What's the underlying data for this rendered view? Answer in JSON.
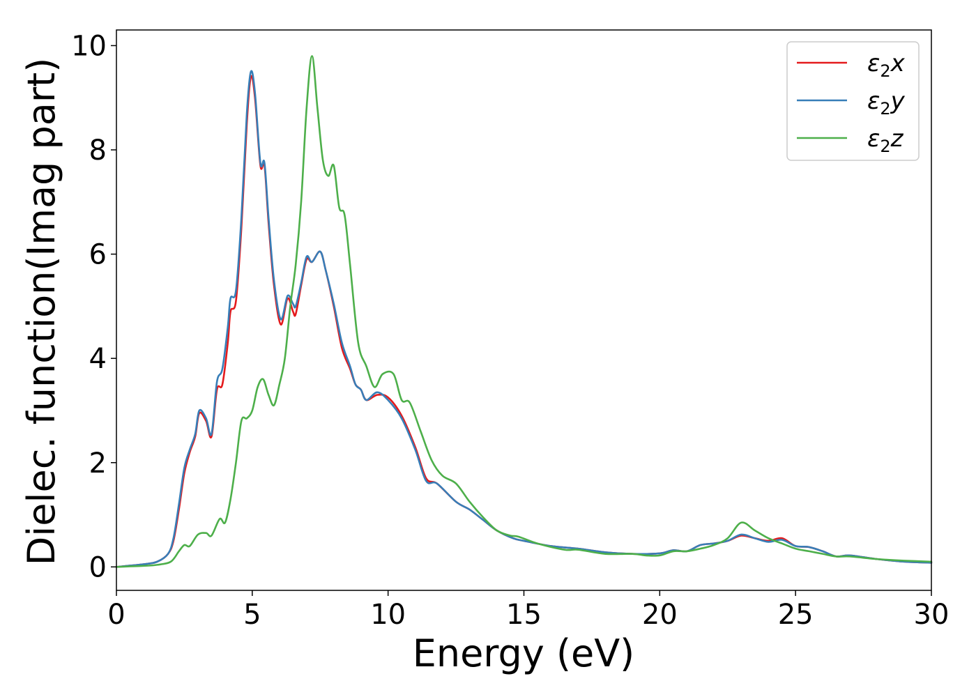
{
  "chart_data": {
    "type": "line",
    "title": "",
    "xlabel": "Energy (eV)",
    "ylabel": "Dielec. function(Imag part)",
    "xlim": [
      0,
      30
    ],
    "ylim": [
      -0.45,
      10.3
    ],
    "xticks": [
      "0",
      "5",
      "10",
      "15",
      "20",
      "25",
      "30"
    ],
    "yticks": [
      "0",
      "2",
      "4",
      "6",
      "8",
      "10"
    ],
    "grid": false,
    "legend_position": "top-right",
    "series": [
      {
        "name": "x",
        "legend_base": "ε",
        "legend_sub": "2",
        "legend_suffix": "x",
        "color": "#e41a1c",
        "points": [
          [
            0,
            0
          ],
          [
            1,
            0.05
          ],
          [
            1.5,
            0.1
          ],
          [
            1.9,
            0.25
          ],
          [
            2.1,
            0.5
          ],
          [
            2.3,
            1.1
          ],
          [
            2.5,
            1.8
          ],
          [
            2.7,
            2.2
          ],
          [
            2.9,
            2.5
          ],
          [
            3.05,
            2.95
          ],
          [
            3.3,
            2.8
          ],
          [
            3.5,
            2.5
          ],
          [
            3.7,
            3.4
          ],
          [
            3.9,
            3.5
          ],
          [
            4.1,
            4.3
          ],
          [
            4.2,
            4.9
          ],
          [
            4.4,
            5.1
          ],
          [
            4.6,
            6.5
          ],
          [
            4.8,
            8.5
          ],
          [
            4.95,
            9.4
          ],
          [
            5.1,
            9.0
          ],
          [
            5.3,
            7.7
          ],
          [
            5.45,
            7.7
          ],
          [
            5.6,
            6.6
          ],
          [
            5.8,
            5.4
          ],
          [
            6.05,
            4.65
          ],
          [
            6.3,
            5.15
          ],
          [
            6.5,
            4.9
          ],
          [
            6.6,
            4.85
          ],
          [
            6.8,
            5.4
          ],
          [
            7.0,
            5.9
          ],
          [
            7.2,
            5.85
          ],
          [
            7.5,
            6.05
          ],
          [
            7.7,
            5.7
          ],
          [
            8.0,
            5.0
          ],
          [
            8.3,
            4.2
          ],
          [
            8.6,
            3.8
          ],
          [
            8.8,
            3.5
          ],
          [
            9.0,
            3.4
          ],
          [
            9.2,
            3.2
          ],
          [
            9.6,
            3.3
          ],
          [
            10.0,
            3.25
          ],
          [
            10.5,
            2.9
          ],
          [
            11.0,
            2.3
          ],
          [
            11.4,
            1.7
          ],
          [
            11.8,
            1.6
          ],
          [
            12.5,
            1.25
          ],
          [
            13,
            1.1
          ],
          [
            13.5,
            0.9
          ],
          [
            14,
            0.7
          ],
          [
            14.6,
            0.55
          ],
          [
            15,
            0.5
          ],
          [
            16,
            0.4
          ],
          [
            17,
            0.35
          ],
          [
            18,
            0.28
          ],
          [
            19,
            0.25
          ],
          [
            20,
            0.26
          ],
          [
            20.5,
            0.32
          ],
          [
            21,
            0.3
          ],
          [
            21.5,
            0.42
          ],
          [
            22,
            0.45
          ],
          [
            22.5,
            0.5
          ],
          [
            23,
            0.6
          ],
          [
            23.5,
            0.55
          ],
          [
            24,
            0.5
          ],
          [
            24.5,
            0.55
          ],
          [
            25,
            0.4
          ],
          [
            25.5,
            0.38
          ],
          [
            26,
            0.3
          ],
          [
            26.5,
            0.2
          ],
          [
            27,
            0.22
          ],
          [
            28,
            0.15
          ],
          [
            29,
            0.1
          ],
          [
            30,
            0.08
          ]
        ]
      },
      {
        "name": "y",
        "legend_base": "ε",
        "legend_sub": "2",
        "legend_suffix": "y",
        "color": "#377eb8",
        "points": [
          [
            0,
            0
          ],
          [
            1,
            0.05
          ],
          [
            1.5,
            0.1
          ],
          [
            1.9,
            0.25
          ],
          [
            2.1,
            0.55
          ],
          [
            2.3,
            1.2
          ],
          [
            2.5,
            1.9
          ],
          [
            2.7,
            2.25
          ],
          [
            2.9,
            2.55
          ],
          [
            3.05,
            3.0
          ],
          [
            3.3,
            2.85
          ],
          [
            3.5,
            2.55
          ],
          [
            3.7,
            3.55
          ],
          [
            3.9,
            3.8
          ],
          [
            4.1,
            4.6
          ],
          [
            4.2,
            5.15
          ],
          [
            4.4,
            5.3
          ],
          [
            4.6,
            6.7
          ],
          [
            4.8,
            8.7
          ],
          [
            4.95,
            9.5
          ],
          [
            5.1,
            9.1
          ],
          [
            5.3,
            7.75
          ],
          [
            5.45,
            7.75
          ],
          [
            5.6,
            6.7
          ],
          [
            5.8,
            5.5
          ],
          [
            6.05,
            4.75
          ],
          [
            6.3,
            5.2
          ],
          [
            6.5,
            5.05
          ],
          [
            6.6,
            5.0
          ],
          [
            6.8,
            5.45
          ],
          [
            7.0,
            5.95
          ],
          [
            7.2,
            5.85
          ],
          [
            7.5,
            6.05
          ],
          [
            7.7,
            5.7
          ],
          [
            8.0,
            5.05
          ],
          [
            8.3,
            4.3
          ],
          [
            8.6,
            3.85
          ],
          [
            8.8,
            3.5
          ],
          [
            9.0,
            3.4
          ],
          [
            9.2,
            3.2
          ],
          [
            9.6,
            3.35
          ],
          [
            10.0,
            3.2
          ],
          [
            10.5,
            2.85
          ],
          [
            11.0,
            2.25
          ],
          [
            11.4,
            1.65
          ],
          [
            11.8,
            1.6
          ],
          [
            12.5,
            1.25
          ],
          [
            13,
            1.1
          ],
          [
            13.5,
            0.9
          ],
          [
            14,
            0.7
          ],
          [
            14.6,
            0.55
          ],
          [
            15,
            0.5
          ],
          [
            16,
            0.4
          ],
          [
            17,
            0.35
          ],
          [
            18,
            0.28
          ],
          [
            19,
            0.25
          ],
          [
            20,
            0.26
          ],
          [
            20.5,
            0.32
          ],
          [
            21,
            0.3
          ],
          [
            21.5,
            0.42
          ],
          [
            22,
            0.45
          ],
          [
            22.5,
            0.5
          ],
          [
            23,
            0.62
          ],
          [
            23.5,
            0.55
          ],
          [
            24,
            0.48
          ],
          [
            24.5,
            0.52
          ],
          [
            25,
            0.4
          ],
          [
            25.5,
            0.38
          ],
          [
            26,
            0.3
          ],
          [
            26.5,
            0.2
          ],
          [
            27,
            0.22
          ],
          [
            28,
            0.15
          ],
          [
            29,
            0.1
          ],
          [
            30,
            0.08
          ]
        ]
      },
      {
        "name": "z",
        "legend_base": "ε",
        "legend_sub": "2",
        "legend_suffix": "z",
        "color": "#4daf4a",
        "points": [
          [
            0,
            0
          ],
          [
            1,
            0.02
          ],
          [
            1.5,
            0.04
          ],
          [
            2.0,
            0.1
          ],
          [
            2.3,
            0.3
          ],
          [
            2.5,
            0.42
          ],
          [
            2.7,
            0.4
          ],
          [
            3.0,
            0.62
          ],
          [
            3.3,
            0.65
          ],
          [
            3.5,
            0.6
          ],
          [
            3.8,
            0.92
          ],
          [
            4.0,
            0.85
          ],
          [
            4.2,
            1.3
          ],
          [
            4.4,
            2.0
          ],
          [
            4.6,
            2.8
          ],
          [
            4.8,
            2.85
          ],
          [
            5.0,
            3.0
          ],
          [
            5.2,
            3.45
          ],
          [
            5.4,
            3.6
          ],
          [
            5.6,
            3.3
          ],
          [
            5.8,
            3.1
          ],
          [
            6.0,
            3.5
          ],
          [
            6.2,
            4.0
          ],
          [
            6.4,
            5.0
          ],
          [
            6.6,
            5.8
          ],
          [
            6.8,
            7.0
          ],
          [
            7.0,
            8.8
          ],
          [
            7.2,
            9.8
          ],
          [
            7.4,
            8.8
          ],
          [
            7.6,
            7.8
          ],
          [
            7.8,
            7.5
          ],
          [
            8.0,
            7.7
          ],
          [
            8.2,
            6.9
          ],
          [
            8.4,
            6.75
          ],
          [
            8.6,
            5.8
          ],
          [
            8.9,
            4.3
          ],
          [
            9.2,
            3.85
          ],
          [
            9.5,
            3.45
          ],
          [
            9.8,
            3.7
          ],
          [
            10.2,
            3.7
          ],
          [
            10.5,
            3.2
          ],
          [
            10.8,
            3.15
          ],
          [
            11.2,
            2.6
          ],
          [
            11.6,
            2.05
          ],
          [
            12.0,
            1.75
          ],
          [
            12.5,
            1.6
          ],
          [
            13.0,
            1.25
          ],
          [
            13.5,
            0.95
          ],
          [
            14.0,
            0.7
          ],
          [
            14.5,
            0.6
          ],
          [
            14.8,
            0.58
          ],
          [
            15.5,
            0.45
          ],
          [
            16.5,
            0.33
          ],
          [
            17,
            0.33
          ],
          [
            18,
            0.25
          ],
          [
            19,
            0.25
          ],
          [
            19.5,
            0.22
          ],
          [
            20,
            0.22
          ],
          [
            20.5,
            0.3
          ],
          [
            21,
            0.3
          ],
          [
            21.5,
            0.35
          ],
          [
            22,
            0.42
          ],
          [
            22.5,
            0.55
          ],
          [
            23,
            0.85
          ],
          [
            23.5,
            0.7
          ],
          [
            24,
            0.55
          ],
          [
            24.5,
            0.45
          ],
          [
            25,
            0.35
          ],
          [
            25.5,
            0.3
          ],
          [
            26,
            0.25
          ],
          [
            26.5,
            0.2
          ],
          [
            27,
            0.2
          ],
          [
            28,
            0.15
          ],
          [
            29,
            0.12
          ],
          [
            30,
            0.1
          ]
        ]
      }
    ]
  }
}
